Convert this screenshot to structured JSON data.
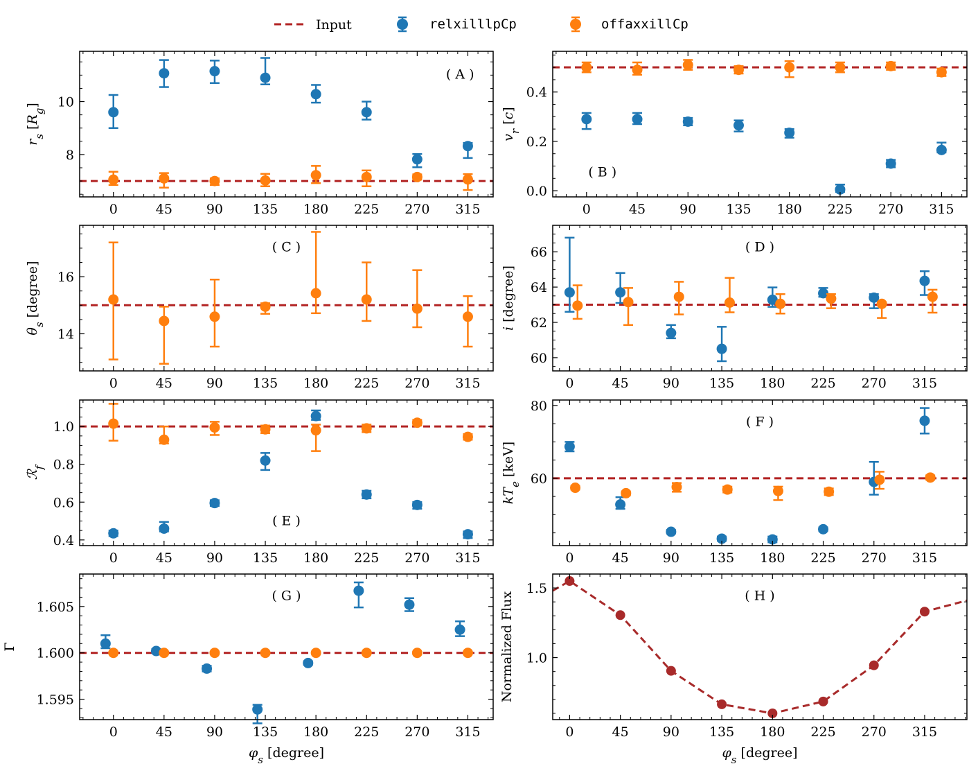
{
  "legend": {
    "input_label": "Input",
    "series_a_label": "relxilllpCp",
    "series_b_label": "offaxxillCp"
  },
  "colors": {
    "input": "#b22222",
    "series_a": "#1f77b4",
    "series_b": "#ff7f0e",
    "flux": "#a82a2a"
  },
  "chart_data": [
    {
      "id": "A",
      "type": "scatter",
      "tag": "( A )",
      "ylabel": "r_s [R_g]",
      "ylim": [
        6.4,
        11.9
      ],
      "yticks": [
        8,
        10
      ],
      "yminor": 0.5,
      "xlim": [
        -30,
        337.5
      ],
      "xticks": [
        0,
        45,
        90,
        135,
        180,
        225,
        270,
        315
      ],
      "xlabel": "",
      "input": 7.0,
      "series_a": {
        "name": "relxilllpCp",
        "x": [
          0,
          45,
          90,
          135,
          180,
          225,
          270,
          315
        ],
        "y": [
          9.6,
          11.07,
          11.15,
          10.9,
          10.28,
          9.6,
          7.82,
          8.32
        ],
        "err_lo": [
          0.6,
          0.52,
          0.45,
          0.25,
          0.32,
          0.28,
          0.3,
          0.45
        ],
        "err_hi": [
          0.65,
          0.5,
          0.4,
          0.75,
          0.35,
          0.4,
          0.2,
          0.12
        ]
      },
      "series_b": {
        "name": "offaxxillCp",
        "x": [
          0,
          45,
          90,
          135,
          180,
          225,
          270,
          315
        ],
        "y": [
          7.05,
          7.1,
          7.0,
          7.02,
          7.22,
          7.15,
          7.15,
          7.06
        ],
        "err_lo": [
          0.2,
          0.35,
          0.15,
          0.22,
          0.3,
          0.35,
          0.1,
          0.4
        ],
        "err_hi": [
          0.3,
          0.2,
          0.1,
          0.25,
          0.35,
          0.25,
          0.1,
          0.2
        ]
      }
    },
    {
      "id": "B",
      "type": "scatter",
      "tag": "( B )",
      "ylabel": "v_r [c]",
      "ylim": [
        -0.025,
        0.565
      ],
      "yticks": [
        0.0,
        0.2,
        0.4
      ],
      "yminor": 0.05,
      "xlim": [
        -30,
        337.5
      ],
      "xticks": [
        0,
        45,
        90,
        135,
        180,
        225,
        270,
        315
      ],
      "xlabel": "",
      "input": 0.5,
      "series_a": {
        "name": "relxilllpCp",
        "x": [
          0,
          45,
          90,
          135,
          180,
          225,
          270,
          315
        ],
        "y": [
          0.29,
          0.29,
          0.28,
          0.265,
          0.235,
          0.005,
          0.11,
          0.165
        ],
        "err_lo": [
          0.04,
          0.02,
          0.015,
          0.025,
          0.02,
          0.01,
          0.015,
          0.01
        ],
        "err_hi": [
          0.025,
          0.025,
          0.015,
          0.02,
          0.015,
          0.02,
          0.015,
          0.03
        ]
      },
      "series_b": {
        "name": "offaxxillCp",
        "x": [
          0,
          45,
          90,
          135,
          180,
          225,
          270,
          315
        ],
        "y": [
          0.5,
          0.49,
          0.51,
          0.49,
          0.5,
          0.5,
          0.505,
          0.48
        ],
        "err_lo": [
          0.02,
          0.02,
          0.02,
          0.015,
          0.04,
          0.02,
          0.015,
          0.015
        ],
        "err_hi": [
          0.02,
          0.03,
          0.02,
          0.015,
          0.025,
          0.02,
          0.015,
          0.015
        ]
      }
    },
    {
      "id": "C",
      "type": "scatter",
      "tag": "( C )",
      "ylabel": "θ_s [degree]",
      "ylim": [
        12.7,
        17.8
      ],
      "yticks": [
        14,
        16
      ],
      "yminor": 0.5,
      "xlim": [
        -30,
        337.5
      ],
      "xticks": [
        0,
        45,
        90,
        135,
        180,
        225,
        270,
        315
      ],
      "xlabel": "",
      "input": 15.0,
      "series_b": {
        "name": "offaxxillCp",
        "x": [
          0,
          45,
          90,
          135,
          180,
          225,
          270,
          315
        ],
        "y": [
          15.2,
          14.45,
          14.6,
          14.95,
          15.42,
          15.2,
          14.88,
          14.6
        ],
        "err_lo": [
          2.1,
          1.5,
          1.05,
          0.25,
          0.7,
          0.75,
          0.65,
          1.05
        ],
        "err_hi": [
          2.0,
          0.5,
          1.3,
          0.12,
          2.15,
          1.3,
          1.35,
          0.72
        ]
      }
    },
    {
      "id": "D",
      "type": "scatter",
      "tag": "( D )",
      "ylabel": "i [degree]",
      "ylim": [
        59.25,
        67.5
      ],
      "yticks": [
        60,
        62,
        64,
        66
      ],
      "yminor": 0.5,
      "xlim": [
        -15,
        352.5
      ],
      "xticks": [
        0,
        45,
        90,
        135,
        180,
        225,
        270,
        315
      ],
      "xlabel": "",
      "input": 63.0,
      "series_a": {
        "name": "relxilllpCp",
        "x": [
          0,
          45,
          90,
          135,
          180,
          225,
          270,
          315
        ],
        "y": [
          63.7,
          63.7,
          61.4,
          60.5,
          63.28,
          63.65,
          63.4,
          64.35
        ],
        "err_lo": [
          1.1,
          0.6,
          0.3,
          0.7,
          0.4,
          0.2,
          0.6,
          0.8
        ],
        "err_hi": [
          3.1,
          1.1,
          0.45,
          1.25,
          0.7,
          0.3,
          0.2,
          0.55
        ]
      },
      "series_b": {
        "name": "offaxxillCp",
        "x": [
          7,
          52,
          97,
          142,
          187,
          232,
          277,
          322
        ],
        "y": [
          62.95,
          63.15,
          63.45,
          63.12,
          63.05,
          63.35,
          63.05,
          63.45
        ],
        "err_lo": [
          0.75,
          1.3,
          1.0,
          0.55,
          0.55,
          0.55,
          0.8,
          0.9
        ],
        "err_hi": [
          1.15,
          0.8,
          0.85,
          1.4,
          0.55,
          0.25,
          0.1,
          0.4
        ]
      }
    },
    {
      "id": "E",
      "type": "scatter",
      "tag": "( E )",
      "ylabel": "R_f",
      "ylim": [
        0.37,
        1.14
      ],
      "yticks": [
        0.4,
        0.6,
        0.8,
        1.0
      ],
      "yminor": 0.05,
      "xlim": [
        -30,
        337.5
      ],
      "xticks": [
        0,
        45,
        90,
        135,
        180,
        225,
        270,
        315
      ],
      "xlabel": "",
      "input": 1.0,
      "series_a": {
        "name": "relxilllpCp",
        "x": [
          0,
          45,
          90,
          135,
          180,
          225,
          270,
          315
        ],
        "y": [
          0.435,
          0.46,
          0.595,
          0.82,
          1.055,
          0.64,
          0.585,
          0.43
        ],
        "err_lo": [
          0.015,
          0.015,
          0.015,
          0.05,
          0.02,
          0.02,
          0.02,
          0.02
        ],
        "err_hi": [
          0.015,
          0.035,
          0.015,
          0.04,
          0.03,
          0.02,
          0.015,
          0.015
        ]
      },
      "series_b": {
        "name": "offaxxillCp",
        "x": [
          0,
          45,
          90,
          135,
          180,
          225,
          270,
          315
        ],
        "y": [
          1.015,
          0.93,
          0.995,
          0.985,
          0.98,
          0.99,
          1.02,
          0.945
        ],
        "err_lo": [
          0.09,
          0.02,
          0.04,
          0.02,
          0.11,
          0.02,
          0.015,
          0.015
        ],
        "err_hi": [
          0.105,
          0.07,
          0.03,
          0.02,
          0.03,
          0.02,
          0.015,
          0.015
        ]
      }
    },
    {
      "id": "F",
      "type": "scatter",
      "tag": "( F )",
      "ylabel": "kT_e [keV]",
      "ylim": [
        41.5,
        81.5
      ],
      "yticks": [
        60,
        80
      ],
      "yminor": 5,
      "xlim": [
        -15,
        352.5
      ],
      "xticks": [
        0,
        45,
        90,
        135,
        180,
        225,
        270,
        315
      ],
      "xlabel": "",
      "input": 60.0,
      "series_a": {
        "name": "relxilllpCp",
        "x": [
          0,
          45,
          90,
          135,
          180,
          225,
          270,
          315
        ],
        "y": [
          68.7,
          52.8,
          45.3,
          43.4,
          43.2,
          46.0,
          59.0,
          75.8
        ],
        "err_lo": [
          1.3,
          1.2,
          0.5,
          0.6,
          0.8,
          0.5,
          3.5,
          3.5
        ],
        "err_hi": [
          1.3,
          2.0,
          0.5,
          0.6,
          0.8,
          0.5,
          5.5,
          3.5
        ]
      },
      "series_b": {
        "name": "offaxxillCp",
        "x": [
          5,
          50,
          95,
          140,
          185,
          230,
          275,
          320
        ],
        "y": [
          57.4,
          55.9,
          57.6,
          56.9,
          56.5,
          56.3,
          59.6,
          60.2
        ],
        "err_lo": [
          0.5,
          0.6,
          1.3,
          0.8,
          2.5,
          0.9,
          2.5,
          0.6
        ],
        "err_hi": [
          0.5,
          0.5,
          1.1,
          0.8,
          1.2,
          0.9,
          2.2,
          0.6
        ]
      }
    },
    {
      "id": "G",
      "type": "scatter",
      "tag": "( G )",
      "ylabel": "Γ",
      "ylim": [
        1.5928,
        1.6085
      ],
      "yticks": [
        1.595,
        1.6,
        1.605
      ],
      "yminor": 0.001,
      "xlim": [
        -30,
        337.5
      ],
      "xticks": [
        0,
        45,
        90,
        135,
        180,
        225,
        270,
        315
      ],
      "xlabel": "φ_s [degree]",
      "input": 1.6,
      "series_a": {
        "name": "relxilllpCp",
        "x": [
          -7,
          38,
          83,
          128,
          173,
          218,
          263,
          308
        ],
        "y": [
          1.601,
          1.6002,
          1.5983,
          1.5939,
          1.5989,
          1.6067,
          1.6052,
          1.6025
        ],
        "err_lo": [
          0.0005,
          0.0002,
          0.0003,
          0.0015,
          0.0002,
          0.0018,
          0.0007,
          0.0007
        ],
        "err_hi": [
          0.0009,
          0.0002,
          0.0003,
          0.0005,
          0.0002,
          0.0009,
          0.0007,
          0.0009
        ]
      },
      "series_b": {
        "name": "offaxxillCp",
        "x": [
          0,
          45,
          90,
          135,
          180,
          225,
          270,
          315
        ],
        "y": [
          1.6,
          1.6,
          1.6,
          1.6,
          1.6,
          1.6,
          1.6,
          1.6
        ],
        "err_lo": [
          0,
          0,
          0,
          0,
          0,
          0,
          0,
          0
        ],
        "err_hi": [
          0,
          0,
          0,
          0,
          0,
          0,
          0,
          0
        ]
      }
    },
    {
      "id": "H",
      "type": "line",
      "tag": "( H )",
      "ylabel": "Normalized Flux",
      "ylim": [
        0.555,
        1.6
      ],
      "yticks": [
        1.0,
        1.5
      ],
      "yminor": 0.1,
      "xlim": [
        -15,
        352.5
      ],
      "xticks": [
        0,
        45,
        90,
        135,
        180,
        225,
        270,
        315
      ],
      "xlabel": "φ_s [degree]",
      "line": {
        "x": [
          -15,
          0,
          45,
          90,
          135,
          180,
          225,
          270,
          315,
          352.5
        ],
        "y": [
          1.48,
          1.55,
          1.305,
          0.905,
          0.665,
          0.6,
          0.685,
          0.945,
          1.33,
          1.41
        ]
      },
      "points": {
        "x": [
          0,
          45,
          90,
          135,
          180,
          225,
          270,
          315
        ],
        "y": [
          1.55,
          1.305,
          0.905,
          0.665,
          0.6,
          0.685,
          0.945,
          1.33
        ]
      }
    }
  ]
}
